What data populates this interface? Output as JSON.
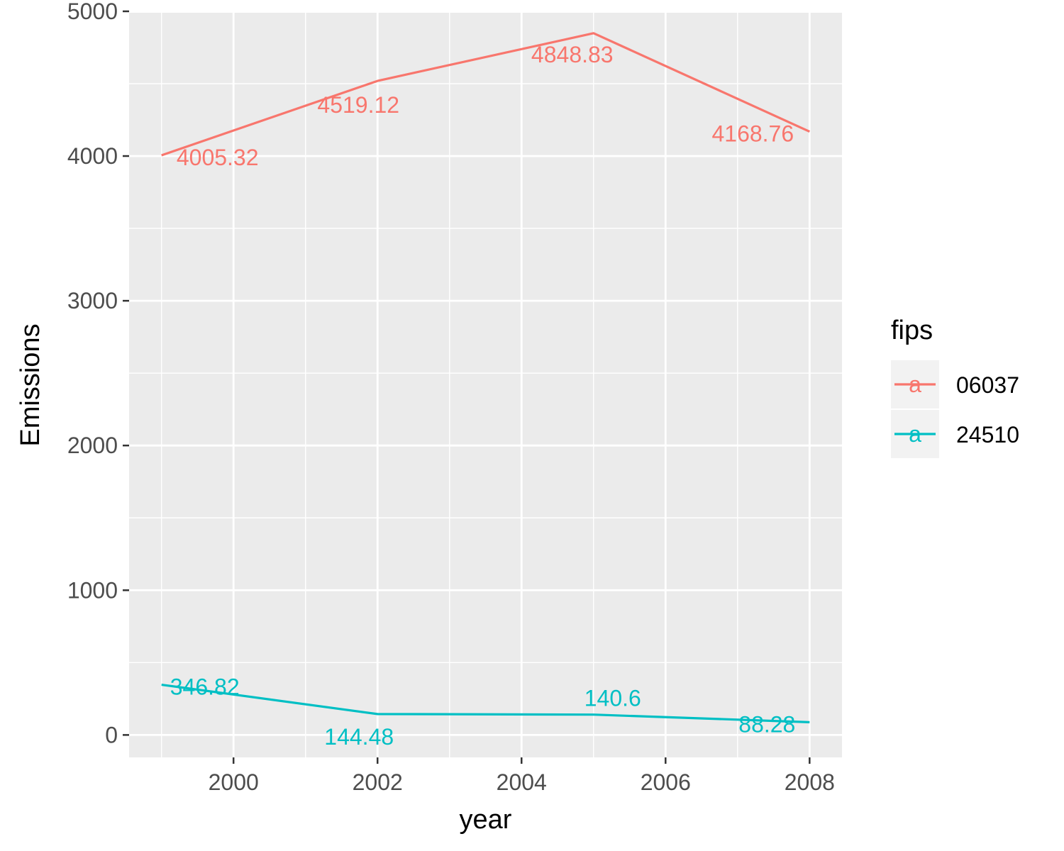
{
  "chart_data": {
    "type": "line",
    "x": [
      1999,
      2002,
      2005,
      2008
    ],
    "series": [
      {
        "name": "06037",
        "color": "#F8766D",
        "values": [
          4005.32,
          4519.12,
          4848.83,
          4168.76
        ],
        "labels": [
          "4005.32",
          "4519.12",
          "4848.83",
          "4168.76"
        ]
      },
      {
        "name": "24510",
        "color": "#00BFC4",
        "values": [
          346.82,
          144.48,
          140.6,
          88.28
        ],
        "labels": [
          "346.82",
          "144.48",
          "140.6",
          "88.28"
        ]
      }
    ],
    "xlabel": "year",
    "ylabel": "Emissions",
    "xlim": [
      1998.55,
      2008.45
    ],
    "ylim": [
      -155,
      4990
    ],
    "x_ticks": [
      2000,
      2002,
      2004,
      2006,
      2008
    ],
    "y_ticks": [
      0,
      1000,
      2000,
      3000,
      4000,
      5000
    ],
    "grid": true,
    "legend": {
      "title": "fips",
      "position": "right",
      "key_glyph": "a"
    },
    "panel_background": "#EBEBEB",
    "grid_color": "#FFFFFF"
  }
}
